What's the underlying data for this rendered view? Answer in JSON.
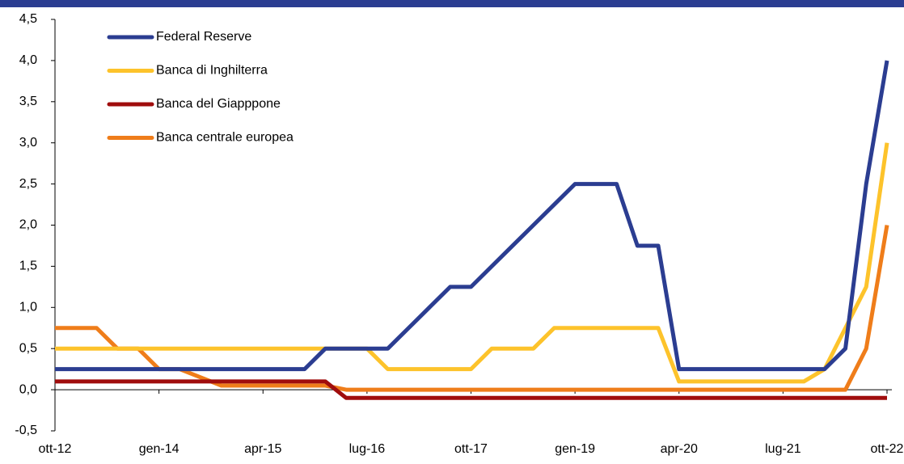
{
  "chart_data": {
    "type": "line",
    "categories": [
      "ott-12",
      null,
      null,
      null,
      null,
      "gen-14",
      null,
      null,
      null,
      null,
      "apr-15",
      null,
      null,
      null,
      null,
      "lug-16",
      null,
      null,
      null,
      null,
      "ott-17",
      null,
      null,
      null,
      null,
      "gen-19",
      null,
      null,
      null,
      null,
      "apr-20",
      null,
      null,
      null,
      null,
      "lug-21",
      null,
      null,
      null,
      null,
      "ott-22"
    ],
    "series": [
      {
        "name": "Federal Reserve",
        "color": "#2b3d91",
        "values": [
          0.25,
          0.25,
          0.25,
          0.25,
          0.25,
          0.25,
          0.25,
          0.25,
          0.25,
          0.25,
          0.25,
          0.25,
          0.25,
          0.5,
          0.5,
          0.5,
          0.5,
          0.75,
          1.0,
          1.25,
          1.25,
          1.5,
          1.75,
          2.0,
          2.25,
          2.5,
          2.5,
          2.5,
          1.75,
          1.75,
          0.25,
          0.25,
          0.25,
          0.25,
          0.25,
          0.25,
          0.25,
          0.25,
          0.5,
          2.5,
          4.0
        ]
      },
      {
        "name": "Banca di Inghilterra",
        "color": "#fdc32b",
        "values": [
          0.5,
          0.5,
          0.5,
          0.5,
          0.5,
          0.5,
          0.5,
          0.5,
          0.5,
          0.5,
          0.5,
          0.5,
          0.5,
          0.5,
          0.5,
          0.5,
          0.25,
          0.25,
          0.25,
          0.25,
          0.25,
          0.5,
          0.5,
          0.5,
          0.75,
          0.75,
          0.75,
          0.75,
          0.75,
          0.75,
          0.1,
          0.1,
          0.1,
          0.1,
          0.1,
          0.1,
          0.1,
          0.25,
          0.75,
          1.25,
          3.0
        ]
      },
      {
        "name": "Banca del Giapppone",
        "color": "#a00d0d",
        "values": [
          0.1,
          0.1,
          0.1,
          0.1,
          0.1,
          0.1,
          0.1,
          0.1,
          0.1,
          0.1,
          0.1,
          0.1,
          0.1,
          0.1,
          -0.1,
          -0.1,
          -0.1,
          -0.1,
          -0.1,
          -0.1,
          -0.1,
          -0.1,
          -0.1,
          -0.1,
          -0.1,
          -0.1,
          -0.1,
          -0.1,
          -0.1,
          -0.1,
          -0.1,
          -0.1,
          -0.1,
          -0.1,
          -0.1,
          -0.1,
          -0.1,
          -0.1,
          -0.1,
          -0.1,
          -0.1
        ]
      },
      {
        "name": "Banca centrale europea",
        "color": "#ef7d1a",
        "values": [
          0.75,
          0.75,
          0.75,
          0.5,
          0.5,
          0.25,
          0.25,
          0.15,
          0.05,
          0.05,
          0.05,
          0.05,
          0.05,
          0.05,
          0,
          0,
          0,
          0,
          0,
          0,
          0,
          0,
          0,
          0,
          0,
          0,
          0,
          0,
          0,
          0,
          0,
          0,
          0,
          0,
          0,
          0,
          0,
          0,
          0,
          0.5,
          2.0
        ]
      }
    ],
    "ylim": [
      -0.5,
      4.5
    ],
    "yticks": [
      {
        "value": -0.5,
        "label": "-0,5"
      },
      {
        "value": 0,
        "label": "0,0"
      },
      {
        "value": 0.5,
        "label": "0,5"
      },
      {
        "value": 1,
        "label": "1,0"
      },
      {
        "value": 1.5,
        "label": "1,5"
      },
      {
        "value": 2,
        "label": "2,0"
      },
      {
        "value": 2.5,
        "label": "2,5"
      },
      {
        "value": 3,
        "label": "3,0"
      },
      {
        "value": 3.5,
        "label": "3,5"
      },
      {
        "value": 4,
        "label": "4,0"
      },
      {
        "value": 4.5,
        "label": "4,5"
      }
    ],
    "grid": false
  }
}
